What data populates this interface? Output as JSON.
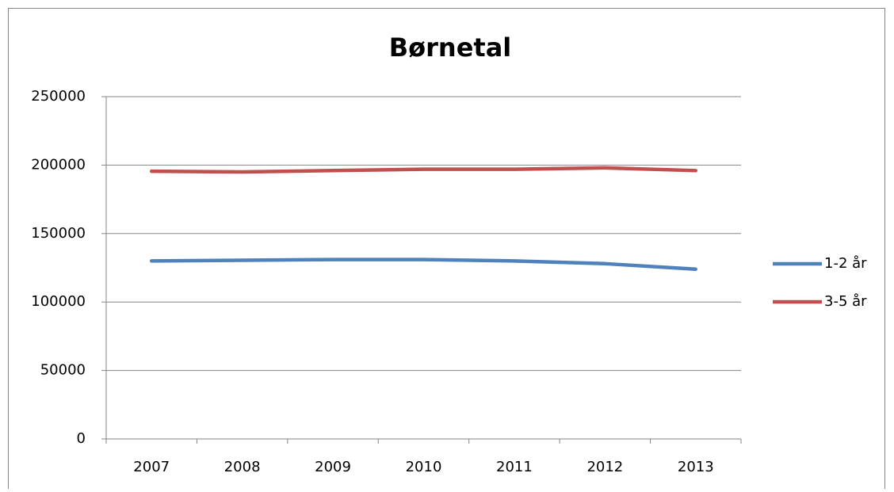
{
  "chart_data": {
    "type": "line",
    "title": "Børnetal",
    "categories": [
      "2007",
      "2008",
      "2009",
      "2010",
      "2011",
      "2012",
      "2013"
    ],
    "series": [
      {
        "name": "1-2 år",
        "color": "#4f81bd",
        "values": [
          130000,
          130500,
          131000,
          131000,
          130000,
          128000,
          124000
        ]
      },
      {
        "name": "3-5 år",
        "color": "#c0504d",
        "values": [
          195500,
          195000,
          196000,
          197000,
          197000,
          198000,
          196000
        ]
      }
    ],
    "ylim": [
      0,
      250000
    ],
    "yticks": [
      0,
      50000,
      100000,
      150000,
      200000,
      250000
    ],
    "grid": true,
    "legend": "right"
  }
}
